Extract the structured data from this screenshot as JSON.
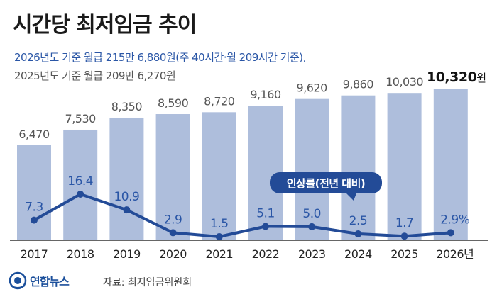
{
  "title": "시간당 최저임금 추이",
  "subtitle_line1": "2026년도 기준 월급 215만 6,880원(주 40시간·월 209시간 기준),",
  "subtitle_line2": "2025년도 기준 월급 209만 6,270원",
  "source": "자료: 최저임금위원회",
  "logo_text": "연합뉴스",
  "colors": {
    "bar": "#aebedc",
    "line": "#234b97",
    "rate_label": "#2a56a6",
    "wage_label": "#555555",
    "axis": "#333333"
  },
  "chart_data": {
    "type": "bar",
    "categories": [
      "2017",
      "2018",
      "2019",
      "2020",
      "2021",
      "2022",
      "2023",
      "2024",
      "2025",
      "2026년"
    ],
    "wage_labels": [
      "6,470",
      "7,530",
      "8,350",
      "8,590",
      "8,720",
      "9,160",
      "9,620",
      "9,860",
      "10,030",
      "10,320"
    ],
    "last_wage_unit": "원",
    "series": [
      {
        "values": [
          6470,
          7530,
          8350,
          8590,
          8720,
          9160,
          9620,
          9860,
          10030,
          10320
        ]
      },
      {
        "name": "인상률(전년 대비)",
        "type": "line",
        "values": [
          7.3,
          16.4,
          10.9,
          2.9,
          1.5,
          5.1,
          5.0,
          2.5,
          1.7,
          2.9
        ],
        "labels": [
          "7.3",
          "16.4",
          "10.9",
          "2.9",
          "1.5",
          "5.1",
          "5.0",
          "2.5",
          "1.7",
          "2.9%"
        ]
      }
    ],
    "legend_label": "인상률(전년 대비)"
  }
}
